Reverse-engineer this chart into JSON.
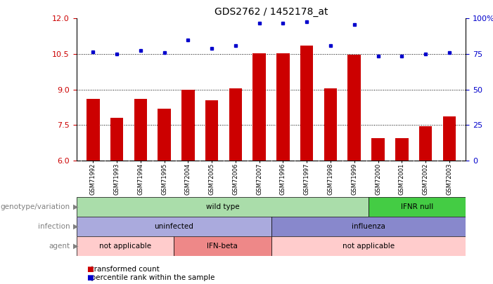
{
  "title": "GDS2762 / 1452178_at",
  "samples": [
    "GSM71992",
    "GSM71993",
    "GSM71994",
    "GSM71995",
    "GSM72004",
    "GSM72005",
    "GSM72006",
    "GSM72007",
    "GSM71996",
    "GSM71997",
    "GSM71998",
    "GSM71999",
    "GSM72000",
    "GSM72001",
    "GSM72002",
    "GSM72003"
  ],
  "bar_values": [
    8.6,
    7.8,
    8.6,
    8.2,
    9.0,
    8.55,
    9.05,
    10.52,
    10.52,
    10.85,
    9.05,
    10.46,
    6.95,
    6.95,
    7.45,
    7.85
  ],
  "dot_values": [
    10.6,
    10.5,
    10.65,
    10.55,
    11.1,
    10.75,
    10.85,
    11.8,
    11.8,
    11.85,
    10.85,
    11.75,
    10.42,
    10.42,
    10.5,
    10.55
  ],
  "ylim_left": [
    6,
    12
  ],
  "ylim_right": [
    0,
    100
  ],
  "yticks_left": [
    6,
    7.5,
    9,
    10.5,
    12
  ],
  "yticks_right": [
    0,
    25,
    50,
    75,
    100
  ],
  "bar_color": "#cc0000",
  "dot_color": "#0000cc",
  "hline_values": [
    7.5,
    9.0,
    10.5
  ],
  "genotype_groups": [
    {
      "label": "wild type",
      "start": 0,
      "end": 12,
      "color": "#aaddaa"
    },
    {
      "label": "IFNR null",
      "start": 12,
      "end": 16,
      "color": "#44cc44"
    }
  ],
  "infection_groups": [
    {
      "label": "uninfected",
      "start": 0,
      "end": 8,
      "color": "#aaaadd"
    },
    {
      "label": "influenza",
      "start": 8,
      "end": 16,
      "color": "#8888cc"
    }
  ],
  "agent_groups": [
    {
      "label": "not applicable",
      "start": 0,
      "end": 4,
      "color": "#ffcccc"
    },
    {
      "label": "IFN-beta",
      "start": 4,
      "end": 8,
      "color": "#ee8888"
    },
    {
      "label": "not applicable",
      "start": 8,
      "end": 16,
      "color": "#ffcccc"
    }
  ],
  "row_labels": [
    "genotype/variation",
    "infection",
    "agent"
  ],
  "legend_items": [
    {
      "label": "transformed count",
      "color": "#cc0000"
    },
    {
      "label": "percentile rank within the sample",
      "color": "#0000cc"
    }
  ],
  "plot_bg": "#ffffff",
  "tick_area_bg": "#cccccc"
}
